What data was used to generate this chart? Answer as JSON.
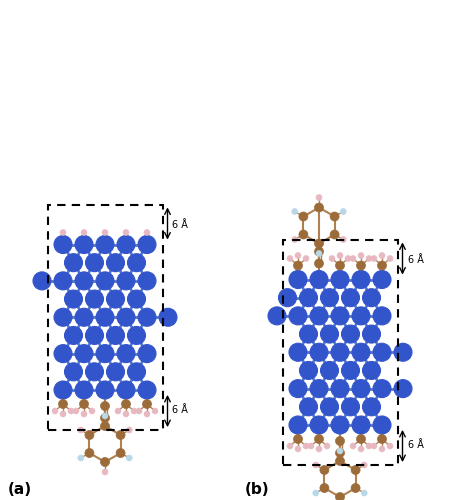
{
  "fig_width": 4.68,
  "fig_height": 5.0,
  "dpi": 100,
  "bg_color": "#ffffff",
  "si_color": "#3355CC",
  "c_color": "#9B6B3A",
  "h_color": "#E8B8C0",
  "f_color": "#B8D8E8",
  "bond_color_si": "#5577CC",
  "bond_color_c": "#B08050",
  "label_a": "(a)",
  "label_b": "(b)",
  "angstrom_label": "6 Å"
}
